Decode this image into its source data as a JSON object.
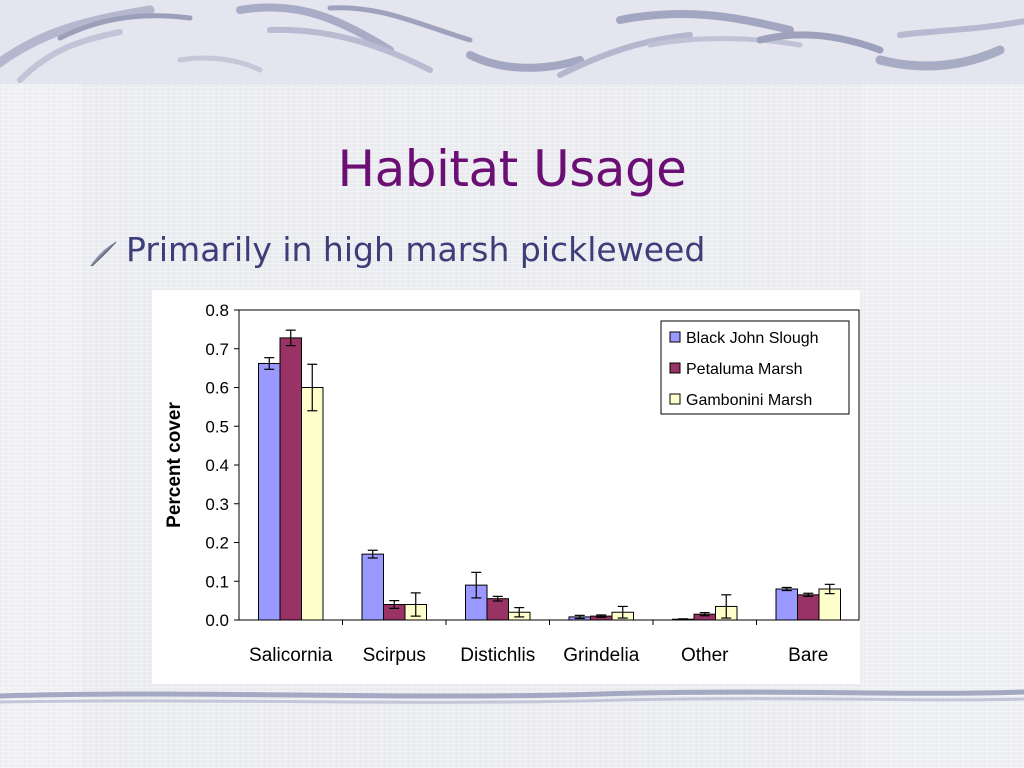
{
  "slide": {
    "title": "Habitat Usage",
    "bullet": "Primarily in high marsh pickleweed",
    "bullet_icon": "feather-quill-icon"
  },
  "chart_data": {
    "type": "bar",
    "categories": [
      "Salicornia",
      "Scirpus",
      "Distichlis",
      "Grindelia",
      "Other",
      "Bare"
    ],
    "series": [
      {
        "name": "Black John Slough",
        "color": "#9999ff",
        "values": [
          0.662,
          0.17,
          0.09,
          0.008,
          0.002,
          0.08
        ],
        "errors": [
          0.015,
          0.01,
          0.033,
          0.004,
          0.001,
          0.004
        ]
      },
      {
        "name": "Petaluma Marsh",
        "color": "#993366",
        "values": [
          0.728,
          0.04,
          0.055,
          0.01,
          0.015,
          0.065
        ],
        "errors": [
          0.02,
          0.01,
          0.006,
          0.003,
          0.004,
          0.004
        ]
      },
      {
        "name": "Gambonini Marsh",
        "color": "#ffffcc",
        "values": [
          0.6,
          0.04,
          0.02,
          0.02,
          0.035,
          0.08
        ],
        "errors": [
          0.06,
          0.03,
          0.012,
          0.015,
          0.03,
          0.012
        ]
      }
    ],
    "xlabel": "",
    "ylabel": "Percent cover",
    "ylim": [
      0,
      0.8
    ],
    "yticks": [
      "0.0",
      "0.1",
      "0.2",
      "0.3",
      "0.4",
      "0.5",
      "0.6",
      "0.7",
      "0.8"
    ],
    "legend_position": "top-right",
    "grid": false
  }
}
